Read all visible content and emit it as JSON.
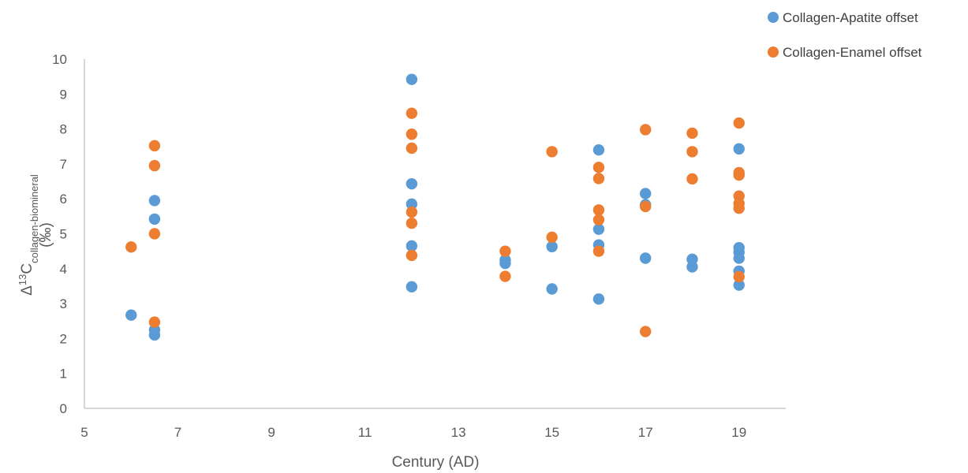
{
  "chart_data": {
    "type": "scatter",
    "xlabel": "Century (AD)",
    "ylabel": {
      "prefix": "Δ",
      "sup": "13",
      "main": "C",
      "sub": "collagen-biomineral",
      "unit": "(‰)"
    },
    "xlim": [
      5,
      20
    ],
    "ylim": [
      0,
      10
    ],
    "x_ticks": [
      5,
      7,
      9,
      11,
      13,
      15,
      17,
      19
    ],
    "y_ticks": [
      0,
      1,
      2,
      3,
      4,
      5,
      6,
      7,
      8,
      9,
      10
    ],
    "grid": false,
    "legend_position": "top-right",
    "series": [
      {
        "name": "Collagen-Apatite offset",
        "color": "#5B9BD5",
        "points": [
          [
            6,
            2.67
          ],
          [
            6.5,
            2.25
          ],
          [
            6.5,
            2.1
          ],
          [
            6.5,
            5.42
          ],
          [
            6.5,
            5.95
          ],
          [
            12,
            9.42
          ],
          [
            12,
            6.43
          ],
          [
            12,
            5.85
          ],
          [
            12,
            4.65
          ],
          [
            12,
            3.48
          ],
          [
            14,
            4.25
          ],
          [
            14,
            4.15
          ],
          [
            15,
            4.63
          ],
          [
            15,
            3.42
          ],
          [
            16,
            7.4
          ],
          [
            16,
            5.13
          ],
          [
            16,
            4.68
          ],
          [
            16,
            3.13
          ],
          [
            17,
            6.15
          ],
          [
            17,
            5.83
          ],
          [
            17,
            4.3
          ],
          [
            18,
            4.27
          ],
          [
            18,
            4.05
          ],
          [
            19,
            7.43
          ],
          [
            19,
            4.6
          ],
          [
            19,
            4.47
          ],
          [
            19,
            4.3
          ],
          [
            19,
            3.93
          ],
          [
            19,
            3.53
          ]
        ]
      },
      {
        "name": "Collagen-Enamel offset",
        "color": "#ED7D31",
        "points": [
          [
            6,
            4.62
          ],
          [
            6.5,
            7.52
          ],
          [
            6.5,
            6.95
          ],
          [
            6.5,
            5.0
          ],
          [
            6.5,
            2.47
          ],
          [
            12,
            8.45
          ],
          [
            12,
            7.85
          ],
          [
            12,
            7.45
          ],
          [
            12,
            5.62
          ],
          [
            12,
            5.3
          ],
          [
            12,
            4.38
          ],
          [
            14,
            4.5
          ],
          [
            14,
            3.78
          ],
          [
            15,
            7.35
          ],
          [
            15,
            4.9
          ],
          [
            16,
            6.9
          ],
          [
            16,
            6.58
          ],
          [
            16,
            5.68
          ],
          [
            16,
            5.4
          ],
          [
            16,
            4.5
          ],
          [
            17,
            7.98
          ],
          [
            17,
            5.78
          ],
          [
            17,
            2.2
          ],
          [
            18,
            7.88
          ],
          [
            18,
            7.35
          ],
          [
            18,
            6.57
          ],
          [
            19,
            8.17
          ],
          [
            19,
            6.75
          ],
          [
            19,
            6.68
          ],
          [
            19,
            6.08
          ],
          [
            19,
            5.87
          ],
          [
            19,
            5.73
          ],
          [
            19,
            3.77
          ]
        ]
      }
    ]
  }
}
